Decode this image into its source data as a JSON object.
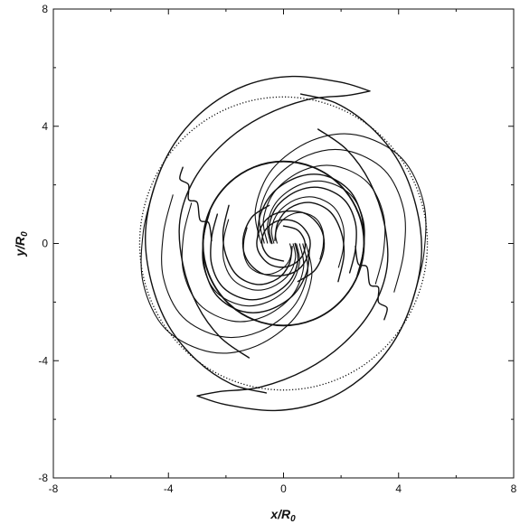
{
  "chart_data": {
    "type": "line",
    "title": "",
    "xlabel": "x/R",
    "xlabel_sub": "0",
    "ylabel": "y/R",
    "ylabel_sub": "0",
    "xlim": [
      -8,
      8
    ],
    "ylim": [
      -8,
      8
    ],
    "xticks": [
      -8,
      -4,
      0,
      4,
      8
    ],
    "yticks": [
      -8,
      -4,
      0,
      4,
      8
    ],
    "xtick_labels": [
      "-8",
      "-4",
      "0",
      "4",
      "8"
    ],
    "ytick_labels": [
      "-8",
      "-4",
      "0",
      "4",
      "8"
    ],
    "grid": false,
    "legend": "none",
    "line_color": "#111111",
    "circles": [
      {
        "kind": "solid",
        "cx": 0,
        "cy": 0,
        "r": 2.8
      },
      {
        "kind": "dotted",
        "cx": 0,
        "cy": 0,
        "r": 5.0
      }
    ],
    "contours": {
      "symmetry": "two-fold rotational (point symmetric about origin)",
      "arms": [
        {
          "name": "outer-arm-outer-edge",
          "points": [
            [
              3.0,
              5.2
            ],
            [
              2.0,
              5.5
            ],
            [
              0.3,
              5.7
            ],
            [
              -1.3,
              5.4
            ],
            [
              -2.7,
              4.6
            ],
            [
              -3.8,
              3.4
            ],
            [
              -4.5,
              1.9
            ],
            [
              -4.8,
              0.3
            ],
            [
              -4.6,
              -1.3
            ],
            [
              -4.0,
              -2.8
            ],
            [
              -3.0,
              -4.0
            ],
            [
              -1.8,
              -4.8
            ],
            [
              -0.6,
              -5.1
            ]
          ]
        },
        {
          "name": "outer-arm-inner-edge",
          "points": [
            [
              3.0,
              5.2
            ],
            [
              2.2,
              5.05
            ],
            [
              0.8,
              4.9
            ],
            [
              -0.8,
              4.3
            ],
            [
              -2.1,
              3.4
            ],
            [
              -3.1,
              2.2
            ],
            [
              -3.6,
              0.8
            ],
            [
              -3.5,
              -0.7
            ],
            [
              -3.0,
              -2.1
            ],
            [
              -2.2,
              -3.2
            ],
            [
              -1.2,
              -3.9
            ]
          ]
        },
        {
          "name": "outer-arm-tongue",
          "points": [
            [
              -3.5,
              2.6
            ],
            [
              -3.6,
              2.2
            ],
            [
              -3.3,
              2.0
            ],
            [
              -3.3,
              1.5
            ],
            [
              -3.0,
              1.4
            ],
            [
              -2.9,
              0.8
            ],
            [
              -2.6,
              0.7
            ],
            [
              -2.5,
              0.1
            ]
          ]
        },
        {
          "name": "inner-arm-1",
          "points": [
            [
              -2.3,
              1.0
            ],
            [
              -2.5,
              0.2
            ],
            [
              -2.5,
              -0.7
            ],
            [
              -2.1,
              -1.5
            ],
            [
              -1.3,
              -1.9
            ],
            [
              -0.5,
              -1.8
            ],
            [
              0.2,
              -1.3
            ],
            [
              0.5,
              -0.6
            ],
            [
              0.4,
              0.0
            ]
          ]
        },
        {
          "name": "inner-arm-2",
          "points": [
            [
              -2.7,
              0.7
            ],
            [
              -2.8,
              -0.1
            ],
            [
              -2.7,
              -1.0
            ],
            [
              -2.3,
              -1.8
            ],
            [
              -1.5,
              -2.3
            ],
            [
              -0.6,
              -2.3
            ],
            [
              0.3,
              -1.8
            ],
            [
              0.8,
              -1.0
            ],
            [
              0.9,
              -0.2
            ]
          ]
        },
        {
          "name": "inner-arm-3",
          "points": [
            [
              -1.9,
              1.3
            ],
            [
              -2.1,
              0.4
            ],
            [
              -2.0,
              -0.4
            ],
            [
              -1.6,
              -1.1
            ],
            [
              -0.9,
              -1.4
            ],
            [
              -0.2,
              -1.2
            ],
            [
              0.2,
              -0.7
            ],
            [
              0.3,
              -0.1
            ]
          ]
        },
        {
          "name": "core-spiral",
          "points": [
            [
              0.0,
              0.6
            ],
            [
              0.5,
              0.45
            ],
            [
              0.75,
              0.0
            ],
            [
              0.6,
              -0.5
            ],
            [
              0.1,
              -0.8
            ],
            [
              -0.5,
              -0.7
            ],
            [
              -0.9,
              -0.2
            ],
            [
              -0.85,
              0.4
            ],
            [
              -0.5,
              0.9
            ],
            [
              0.1,
              1.1
            ],
            [
              0.8,
              1.0
            ],
            [
              1.3,
              0.5
            ],
            [
              1.4,
              -0.2
            ],
            [
              1.1,
              -0.9
            ],
            [
              0.5,
              -1.3
            ]
          ]
        }
      ]
    }
  }
}
